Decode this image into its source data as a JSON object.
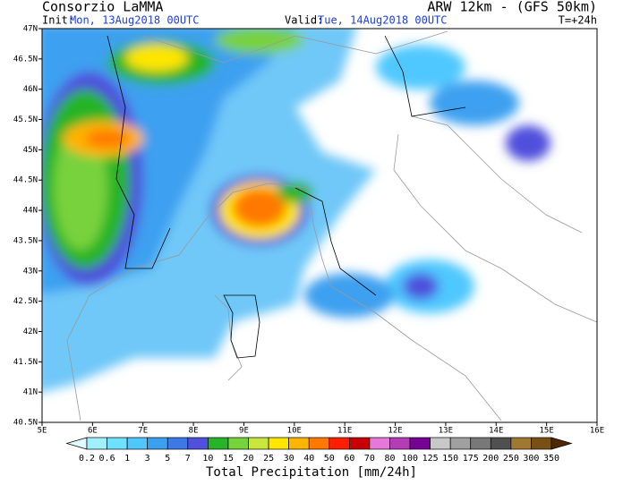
{
  "header": {
    "title": "Consorzio LaMMA",
    "init_label": "Init:",
    "init_date": "Mon, 13Aug2018 00UTC",
    "model": "ARW 12km  -  (GFS 50km)",
    "valid_label": "Valid:",
    "valid_date": "Tue, 14Aug2018 00UTC",
    "lead": "T=+24h"
  },
  "map": {
    "lat_labels": [
      "47N",
      "46.5N",
      "46N",
      "45.5N",
      "45N",
      "44.5N",
      "44N",
      "43.5N",
      "43N",
      "42.5N",
      "42N",
      "41.5N",
      "41N",
      "40.5N"
    ],
    "lon_labels": [
      "5E",
      "6E",
      "7E",
      "8E",
      "9E",
      "10E",
      "11E",
      "12E",
      "13E",
      "14E",
      "15E",
      "16E"
    ]
  },
  "colorbar": {
    "labels": [
      "0.2",
      "0.6",
      "1",
      "3",
      "5",
      "7",
      "10",
      "15",
      "20",
      "25",
      "30",
      "40",
      "50",
      "60",
      "70",
      "80",
      "100",
      "125",
      "150",
      "175",
      "200",
      "250",
      "300",
      "350"
    ],
    "colors": [
      "#e0fbff",
      "#a0f0ff",
      "#6fe0ff",
      "#50c8ff",
      "#3ca0f0",
      "#3c78e6",
      "#5050dc",
      "#28b428",
      "#78d23c",
      "#c8e63c",
      "#ffe600",
      "#ffb400",
      "#ff7800",
      "#ff1e00",
      "#c80000",
      "#e678dc",
      "#b43cb4",
      "#780096",
      "#c8c8c8",
      "#a0a0a0",
      "#787878",
      "#505050",
      "#a07832",
      "#785014",
      "#502800"
    ],
    "title": "Total Precipitation [mm/24h]"
  }
}
